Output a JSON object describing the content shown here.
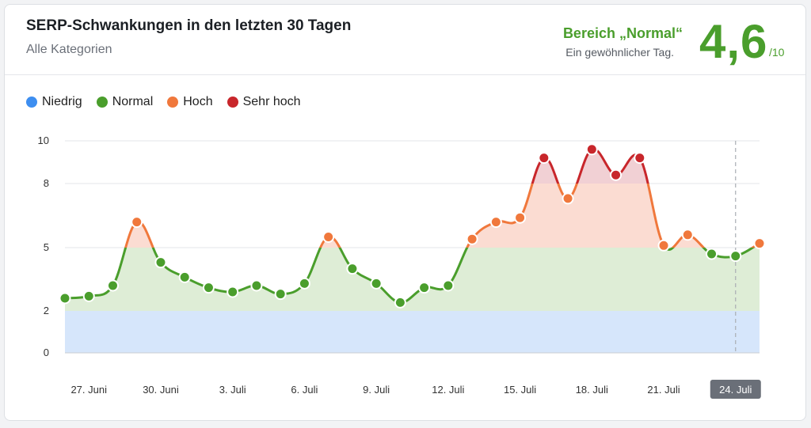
{
  "header": {
    "title": "SERP-Schwankungen in den letzten 30 Tagen",
    "subtitle": "Alle Kategorien",
    "range_label": "Bereich „Normal“",
    "range_desc": "Ein gewöhnlicher Tag.",
    "score": "4,6",
    "score_max": "/10"
  },
  "legend": [
    {
      "label": "Niedrig",
      "color": "#3d8ef0"
    },
    {
      "label": "Normal",
      "color": "#4a9e2c"
    },
    {
      "label": "Hoch",
      "color": "#f0783c"
    },
    {
      "label": "Sehr hoch",
      "color": "#c8262b"
    }
  ],
  "colors": {
    "low_band": "#d6e6fb",
    "normal_band": "#deedd6",
    "high_band": "#fbdcd2",
    "very_high_band": "#f1d0d4",
    "normal": "#4a9e2c",
    "high": "#f0783c",
    "very_high": "#c8262b",
    "grid": "#e3e5e8",
    "marker_line": "#a9adb3",
    "active_label_bg": "#6a6f78"
  },
  "chart_data": {
    "type": "line",
    "title": "SERP-Schwankungen in den letzten 30 Tagen",
    "xlabel": "",
    "ylabel": "",
    "ylim": [
      0,
      10
    ],
    "y_ticks": [
      0,
      2,
      5,
      8,
      10
    ],
    "x_tick_labels": [
      "27. Juni",
      "30. Juni",
      "3. Juli",
      "6. Juli",
      "9. Juli",
      "12. Juli",
      "15. Juli",
      "18. Juli",
      "21. Juli",
      "24. Juli"
    ],
    "x_tick_indices": [
      1,
      4,
      7,
      10,
      13,
      16,
      19,
      22,
      25,
      28
    ],
    "active_index": 28,
    "thresholds": {
      "low": 2,
      "normal": 5,
      "high": 8
    },
    "values": [
      2.6,
      2.7,
      3.2,
      6.2,
      4.3,
      3.6,
      3.1,
      2.9,
      3.2,
      2.8,
      3.3,
      5.5,
      4.0,
      3.3,
      2.4,
      3.1,
      3.2,
      5.4,
      6.2,
      6.4,
      9.2,
      7.3,
      9.6,
      8.4,
      9.2,
      5.1,
      5.6,
      4.7,
      4.6,
      5.2
    ]
  }
}
